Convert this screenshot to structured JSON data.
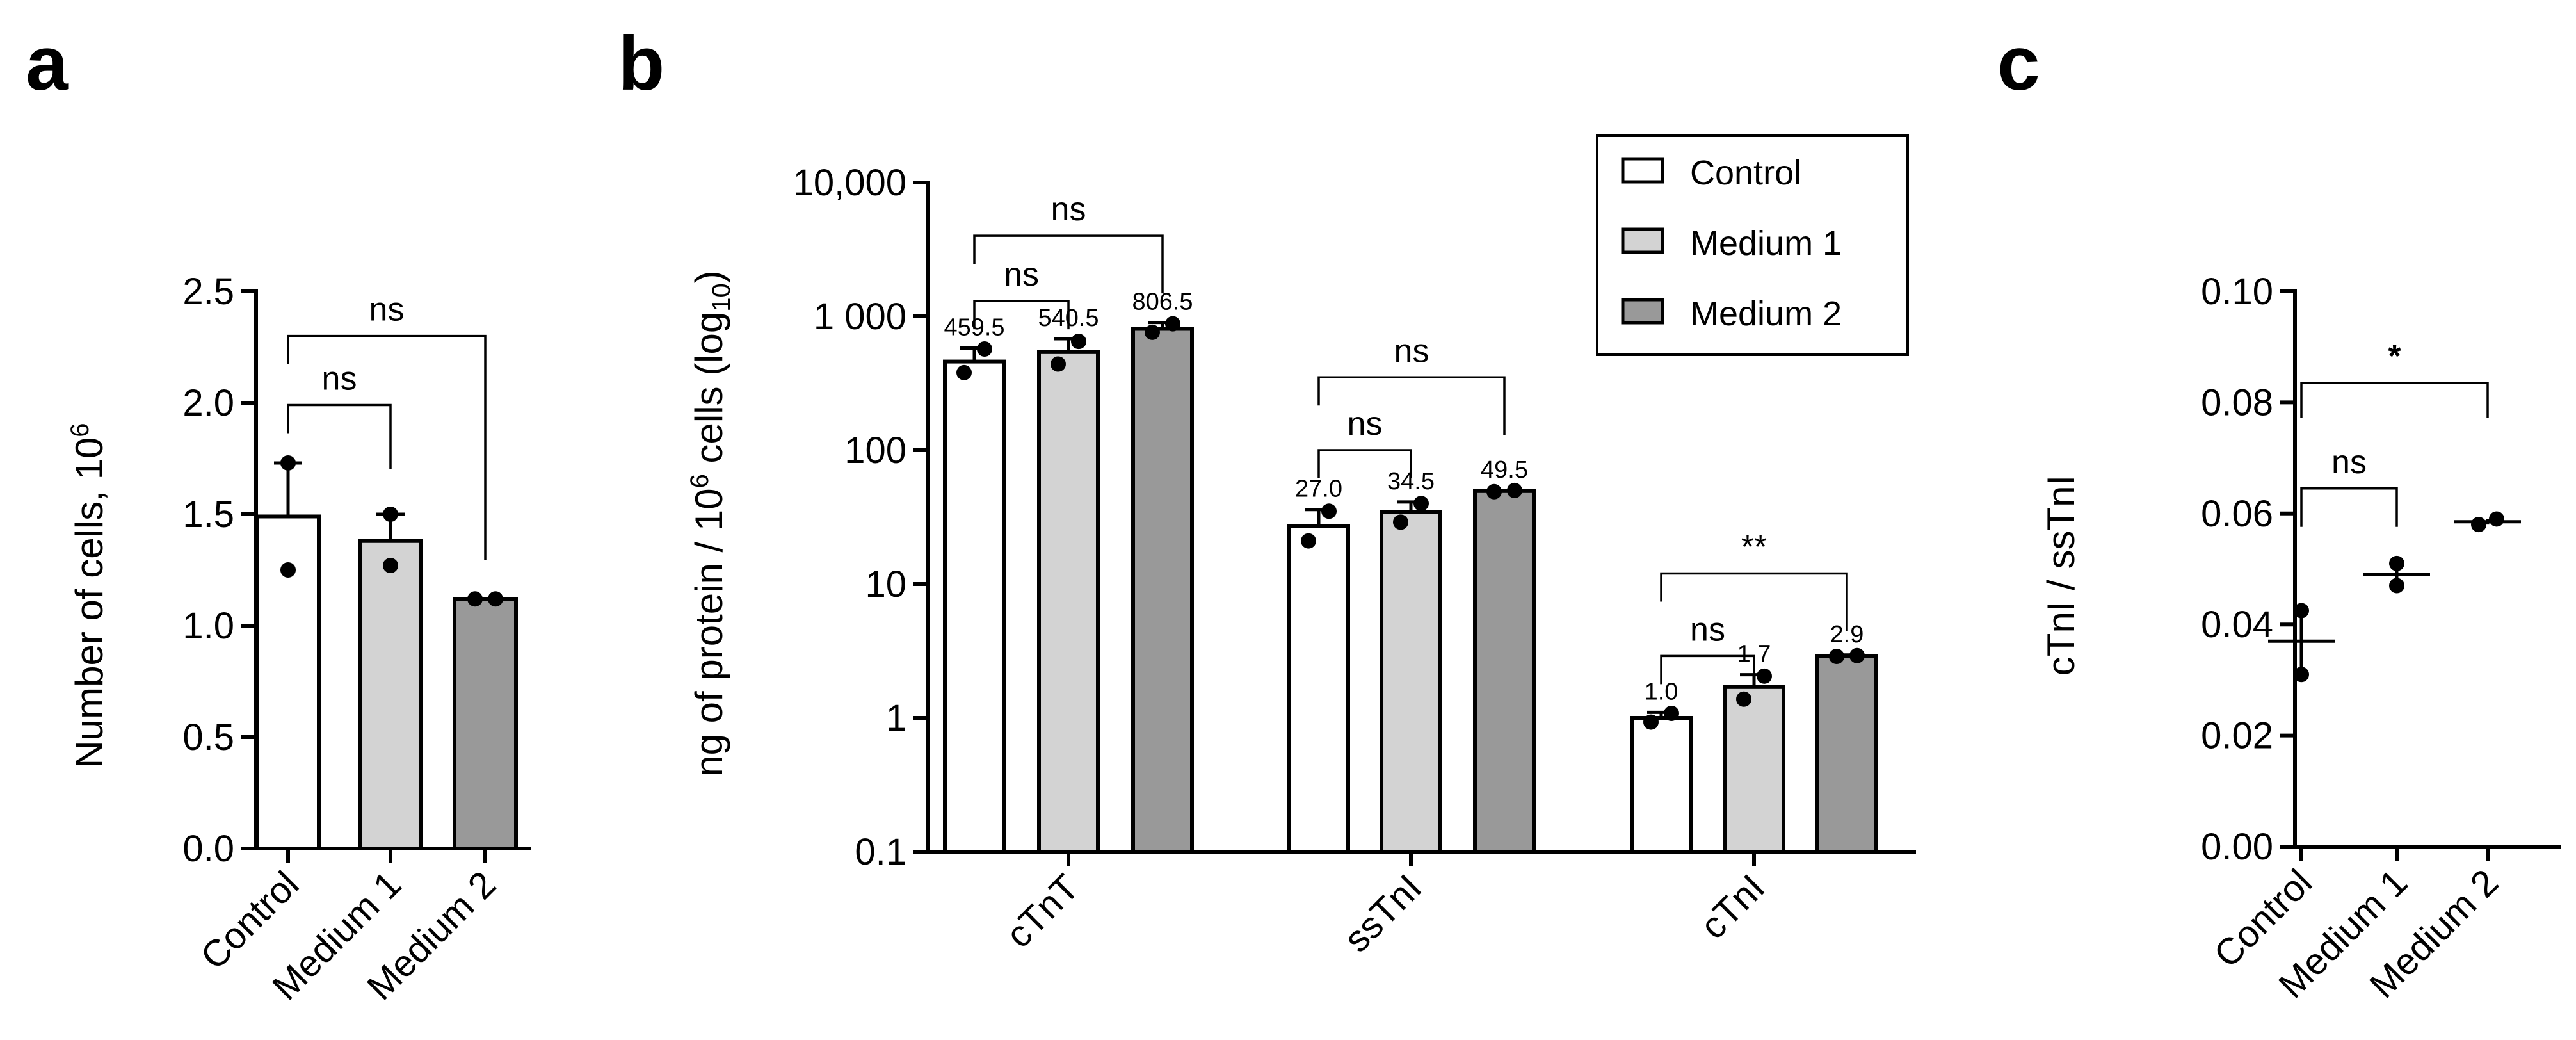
{
  "chart_data": [
    {
      "panel": "a",
      "type": "bar",
      "ylabel": "Number of cells, 10",
      "ylabel_sup": "6",
      "ylim": [
        0,
        2.5
      ],
      "yticks": [
        0.0,
        0.5,
        1.0,
        1.5,
        2.0,
        2.5
      ],
      "yticklabels": [
        "0.0",
        "0.5",
        "1.0",
        "1.5",
        "2.0",
        "2.5"
      ],
      "categories": [
        "Control",
        "Medium 1",
        "Medium 2"
      ],
      "colors": [
        "#ffffff",
        "#d3d3d3",
        "#999999"
      ],
      "values": [
        1.49,
        1.38,
        1.12
      ],
      "err_upper": [
        1.73,
        1.5,
        1.12
      ],
      "points": [
        [
          1.73,
          1.25
        ],
        [
          1.5,
          1.27
        ],
        [
          1.12,
          1.12
        ]
      ],
      "comparisons": [
        {
          "from": 0,
          "to": 1,
          "label": "ns",
          "level": 1.99
        },
        {
          "from": 0,
          "to": 2,
          "label": "ns",
          "level": 2.3
        }
      ]
    },
    {
      "panel": "b",
      "type": "bar",
      "scale": "log",
      "ylabel": "ng of protein / 10",
      "ylabel_sup": "6",
      "ylabel_mid": " cells (log",
      "ylabel_sub": "10",
      "ylabel_end": ")",
      "ylim": [
        0.1,
        10000
      ],
      "yticks": [
        0.1,
        1,
        10,
        100,
        1000,
        10000
      ],
      "yticklabels": [
        "0.1",
        "1",
        "10",
        "100",
        "1 000",
        "10,000"
      ],
      "groups": [
        "cTnT",
        "ssTnI",
        "cTnI"
      ],
      "series": [
        {
          "name": "Control",
          "color": "#ffffff",
          "values": [
            459.5,
            27.0,
            1.0
          ],
          "labels": [
            "459.5",
            "27.0",
            "1.0"
          ],
          "err_upper": [
            580,
            36,
            1.1
          ],
          "points": [
            [
              570,
              380
            ],
            [
              35,
              21
            ],
            [
              1.08,
              0.93
            ]
          ]
        },
        {
          "name": "Medium 1",
          "color": "#d3d3d3",
          "values": [
            540.5,
            34.5,
            1.7
          ],
          "labels": [
            "540.5",
            "34.5",
            "1.7"
          ],
          "err_upper": [
            680,
            41,
            2.1
          ],
          "points": [
            [
              650,
              440
            ],
            [
              40,
              29
            ],
            [
              2.05,
              1.38
            ]
          ]
        },
        {
          "name": "Medium 2",
          "color": "#999999",
          "values": [
            806.5,
            49.5,
            2.9
          ],
          "labels": [
            "806.5",
            "49.5",
            "2.9"
          ],
          "err_upper": [
            900,
            50,
            2.95
          ],
          "points": [
            [
              880,
              760
            ],
            [
              50,
              49
            ],
            [
              2.92,
              2.88
            ]
          ]
        }
      ],
      "legend": [
        "Control",
        "Medium 1",
        "Medium 2"
      ],
      "comparisons": [
        {
          "group": 0,
          "from": 0,
          "to": 1,
          "label": "ns",
          "level": 1300,
          "top": 1800
        },
        {
          "group": 0,
          "from": 0,
          "to": 2,
          "label": "ns",
          "level": 4000,
          "top": 4000
        },
        {
          "group": 1,
          "from": 0,
          "to": 1,
          "label": "ns",
          "level": 100,
          "top": 150
        },
        {
          "group": 1,
          "from": 0,
          "to": 2,
          "label": "ns",
          "level": 350,
          "top": 350
        },
        {
          "group": 2,
          "from": 0,
          "to": 1,
          "label": "ns",
          "level": 2.9,
          "top": 4.2
        },
        {
          "group": 2,
          "from": 0,
          "to": 2,
          "label": "**",
          "level": 12,
          "top": 12
        }
      ]
    },
    {
      "panel": "c",
      "type": "scatter",
      "ylabel": "cTnI / ssTnI",
      "ylim": [
        0,
        0.1
      ],
      "yticks": [
        0.0,
        0.02,
        0.04,
        0.06,
        0.08,
        0.1
      ],
      "yticklabels": [
        "0.00",
        "0.02",
        "0.04",
        "0.06",
        "0.08",
        "0.10"
      ],
      "categories": [
        "Control",
        "Medium 1",
        "Medium 2"
      ],
      "means": [
        0.037,
        0.049,
        0.0585
      ],
      "ranges": [
        [
          0.031,
          0.043
        ],
        [
          0.047,
          0.051
        ],
        [
          0.058,
          0.059
        ]
      ],
      "points": [
        [
          0.0425,
          0.031
        ],
        [
          0.051,
          0.047
        ],
        [
          0.058,
          0.059
        ]
      ],
      "comparisons": [
        {
          "from": 0,
          "to": 1,
          "label": "ns",
          "level": 0.0645
        },
        {
          "from": 0,
          "to": 2,
          "label": "*",
          "level": 0.0835
        }
      ]
    }
  ],
  "panel_letters": [
    "a",
    "b",
    "c"
  ]
}
